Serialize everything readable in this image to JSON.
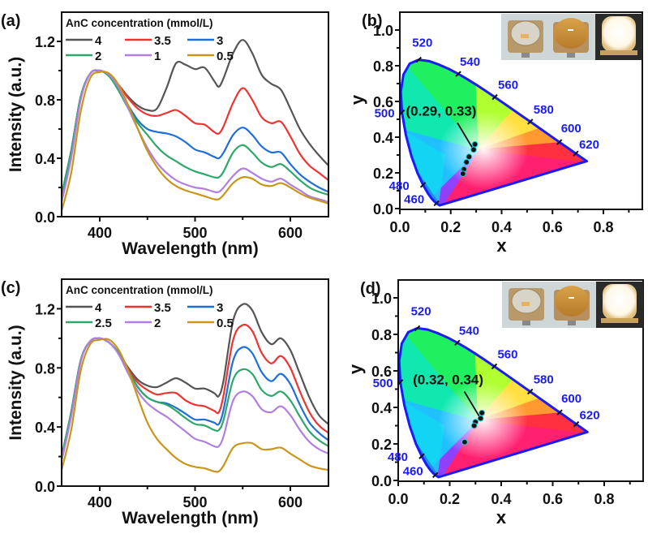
{
  "chart_data": [
    {
      "panel_label": "(a)",
      "type": "line",
      "xlabel": "Wavelength (nm)",
      "ylabel": "Intensity (a.u.)",
      "xlim": [
        360,
        640
      ],
      "ylim": [
        0,
        1.4
      ],
      "xticks": [
        "400",
        "500",
        "600"
      ],
      "yticks": [
        "0.0",
        "0.4",
        "0.8",
        "1.2"
      ],
      "legend_title": "AnC concentration (mmol/L)",
      "legend_placement": "top-left",
      "x": [
        360,
        370,
        380,
        390,
        400,
        410,
        420,
        430,
        440,
        450,
        460,
        470,
        480,
        490,
        500,
        510,
        520,
        525,
        530,
        540,
        550,
        560,
        570,
        580,
        590,
        600,
        610,
        620,
        630,
        640
      ],
      "series": [
        {
          "name": "4",
          "color": "#555555",
          "values": [
            0.15,
            0.45,
            0.82,
            0.98,
            1.0,
            0.97,
            0.9,
            0.82,
            0.76,
            0.73,
            0.74,
            0.88,
            1.05,
            1.04,
            1.01,
            1.02,
            0.93,
            0.89,
            0.95,
            1.12,
            1.21,
            1.12,
            0.97,
            0.91,
            0.87,
            0.74,
            0.6,
            0.5,
            0.42,
            0.35
          ]
        },
        {
          "name": "3.5",
          "color": "#ee3333",
          "values": [
            0.15,
            0.45,
            0.82,
            0.98,
            1.0,
            0.97,
            0.9,
            0.81,
            0.74,
            0.7,
            0.69,
            0.71,
            0.73,
            0.69,
            0.64,
            0.63,
            0.58,
            0.57,
            0.62,
            0.78,
            0.88,
            0.8,
            0.68,
            0.64,
            0.65,
            0.55,
            0.43,
            0.35,
            0.3,
            0.25
          ]
        },
        {
          "name": "3",
          "color": "#1f6fd6",
          "values": [
            0.15,
            0.45,
            0.82,
            0.98,
            1.0,
            0.96,
            0.87,
            0.76,
            0.66,
            0.6,
            0.58,
            0.57,
            0.55,
            0.51,
            0.46,
            0.44,
            0.41,
            0.4,
            0.44,
            0.56,
            0.61,
            0.56,
            0.48,
            0.44,
            0.44,
            0.36,
            0.29,
            0.24,
            0.2,
            0.17
          ]
        },
        {
          "name": "2",
          "color": "#2ea86a",
          "values": [
            0.15,
            0.45,
            0.82,
            0.98,
            1.0,
            0.96,
            0.86,
            0.74,
            0.64,
            0.56,
            0.48,
            0.42,
            0.38,
            0.34,
            0.31,
            0.29,
            0.27,
            0.27,
            0.31,
            0.44,
            0.49,
            0.44,
            0.37,
            0.34,
            0.36,
            0.31,
            0.25,
            0.2,
            0.17,
            0.15
          ]
        },
        {
          "name": "1",
          "color": "#b07fe0",
          "values": [
            0.1,
            0.4,
            0.8,
            0.98,
            1.0,
            0.97,
            0.88,
            0.74,
            0.6,
            0.47,
            0.37,
            0.3,
            0.25,
            0.22,
            0.2,
            0.19,
            0.17,
            0.17,
            0.2,
            0.28,
            0.33,
            0.3,
            0.26,
            0.24,
            0.26,
            0.22,
            0.18,
            0.14,
            0.12,
            0.1
          ]
        },
        {
          "name": "0.5",
          "color": "#c9961a",
          "values": [
            0.04,
            0.3,
            0.72,
            0.95,
            0.99,
            0.98,
            0.9,
            0.76,
            0.6,
            0.45,
            0.34,
            0.26,
            0.21,
            0.18,
            0.16,
            0.14,
            0.12,
            0.12,
            0.15,
            0.23,
            0.27,
            0.26,
            0.22,
            0.21,
            0.23,
            0.2,
            0.16,
            0.13,
            0.11,
            0.09
          ]
        }
      ]
    },
    {
      "panel_label": "(b)",
      "type": "scatter",
      "subtype": "CIE 1931 chromaticity diagram",
      "xlabel": "x",
      "ylabel": "y",
      "xlim": [
        0,
        0.95
      ],
      "ylim": [
        0,
        1.08
      ],
      "xticks": [
        "0.0",
        "0.2",
        "0.4",
        "0.6",
        "0.8"
      ],
      "yticks": [
        "0.0",
        "0.2",
        "0.4",
        "0.6",
        "0.8",
        "1.0"
      ],
      "wavelength_labels": [
        "460",
        "480",
        "500",
        "520",
        "540",
        "560",
        "580",
        "600",
        "620"
      ],
      "annotation": "(0.29, 0.33)",
      "points": [
        {
          "x": 0.295,
          "y": 0.36
        },
        {
          "x": 0.29,
          "y": 0.33
        },
        {
          "x": 0.272,
          "y": 0.29
        },
        {
          "x": 0.262,
          "y": 0.26
        },
        {
          "x": 0.252,
          "y": 0.22
        },
        {
          "x": 0.248,
          "y": 0.195
        }
      ],
      "inset": "photos of LED devices: bare chip, coated, lit (white)"
    },
    {
      "panel_label": "(c)",
      "type": "line",
      "xlabel": "Wavelength (nm)",
      "ylabel": "Intensity (a.u.)",
      "xlim": [
        360,
        640
      ],
      "ylim": [
        0,
        1.4
      ],
      "xticks": [
        "400",
        "500",
        "600"
      ],
      "yticks": [
        "0.0",
        "0.4",
        "0.8",
        "1.2"
      ],
      "legend_title": "AnC concentration (mmol/L)",
      "legend_placement": "top-left",
      "x": [
        360,
        370,
        380,
        390,
        400,
        410,
        420,
        430,
        440,
        450,
        460,
        470,
        480,
        490,
        500,
        510,
        520,
        525,
        530,
        540,
        550,
        560,
        570,
        580,
        590,
        600,
        610,
        620,
        630,
        640
      ],
      "series": [
        {
          "name": "4",
          "color": "#555555",
          "values": [
            0.2,
            0.5,
            0.85,
            0.98,
            1.0,
            0.97,
            0.9,
            0.8,
            0.72,
            0.68,
            0.67,
            0.7,
            0.73,
            0.7,
            0.66,
            0.66,
            0.63,
            0.61,
            0.72,
            1.12,
            1.23,
            1.19,
            1.04,
            0.96,
            1.0,
            0.92,
            0.76,
            0.6,
            0.48,
            0.42
          ]
        },
        {
          "name": "3.5",
          "color": "#ee3333",
          "values": [
            0.2,
            0.5,
            0.85,
            0.98,
            1.0,
            0.97,
            0.9,
            0.79,
            0.7,
            0.65,
            0.62,
            0.63,
            0.63,
            0.58,
            0.55,
            0.54,
            0.51,
            0.5,
            0.62,
            0.99,
            1.09,
            1.05,
            0.9,
            0.83,
            0.88,
            0.8,
            0.64,
            0.5,
            0.41,
            0.36
          ]
        },
        {
          "name": "3",
          "color": "#1f6fd6",
          "values": [
            0.2,
            0.5,
            0.85,
            0.98,
            1.0,
            0.97,
            0.9,
            0.78,
            0.67,
            0.6,
            0.57,
            0.56,
            0.53,
            0.49,
            0.45,
            0.45,
            0.43,
            0.42,
            0.52,
            0.85,
            0.94,
            0.9,
            0.77,
            0.71,
            0.76,
            0.69,
            0.55,
            0.43,
            0.36,
            0.31
          ]
        },
        {
          "name": "2.5",
          "color": "#2ea86a",
          "values": [
            0.2,
            0.5,
            0.85,
            0.98,
            1.0,
            0.97,
            0.9,
            0.78,
            0.67,
            0.6,
            0.57,
            0.55,
            0.51,
            0.46,
            0.42,
            0.41,
            0.38,
            0.38,
            0.45,
            0.72,
            0.79,
            0.76,
            0.65,
            0.61,
            0.64,
            0.58,
            0.47,
            0.37,
            0.31,
            0.27
          ]
        },
        {
          "name": "2",
          "color": "#b07fe0",
          "values": [
            0.17,
            0.47,
            0.84,
            0.98,
            1.0,
            0.97,
            0.89,
            0.76,
            0.64,
            0.56,
            0.51,
            0.47,
            0.42,
            0.37,
            0.32,
            0.3,
            0.27,
            0.27,
            0.34,
            0.58,
            0.64,
            0.61,
            0.52,
            0.5,
            0.54,
            0.48,
            0.38,
            0.3,
            0.25,
            0.22
          ]
        },
        {
          "name": "0.5",
          "color": "#c9961a",
          "values": [
            0.11,
            0.38,
            0.78,
            0.96,
            0.99,
            0.99,
            0.92,
            0.78,
            0.6,
            0.43,
            0.32,
            0.25,
            0.19,
            0.15,
            0.13,
            0.12,
            0.1,
            0.1,
            0.14,
            0.26,
            0.29,
            0.29,
            0.25,
            0.25,
            0.26,
            0.22,
            0.18,
            0.14,
            0.12,
            0.11
          ]
        }
      ]
    },
    {
      "panel_label": "(d)",
      "type": "scatter",
      "subtype": "CIE 1931 chromaticity diagram",
      "xlabel": "x",
      "ylabel": "y",
      "xlim": [
        0,
        0.95
      ],
      "ylim": [
        0,
        1.08
      ],
      "xticks": [
        "0.0",
        "0.2",
        "0.4",
        "0.6",
        "0.8"
      ],
      "yticks": [
        "0.0",
        "0.2",
        "0.4",
        "0.6",
        "0.8",
        "1.0"
      ],
      "wavelength_labels": [
        "460",
        "480",
        "500",
        "520",
        "540",
        "560",
        "580",
        "600",
        "620"
      ],
      "annotation": "(0.32, 0.34)",
      "points": [
        {
          "x": 0.325,
          "y": 0.37
        },
        {
          "x": 0.32,
          "y": 0.34
        },
        {
          "x": 0.3,
          "y": 0.32
        },
        {
          "x": 0.295,
          "y": 0.3
        },
        {
          "x": 0.258,
          "y": 0.21
        }
      ],
      "inset": "photos of LED devices: bare chip, coated, lit (white)"
    }
  ]
}
